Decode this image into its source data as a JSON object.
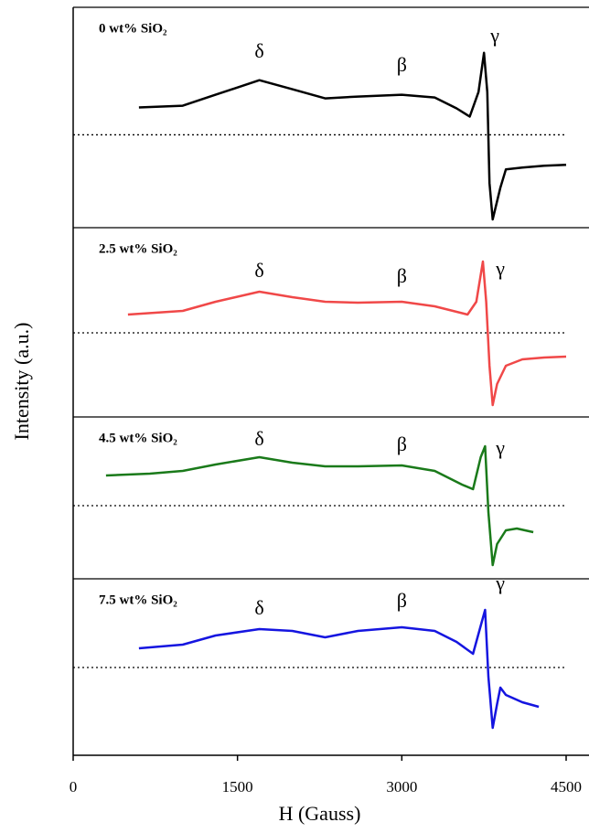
{
  "chart_data": [
    {
      "type": "line",
      "title": "0 wt% SiO₂",
      "color": "#000000",
      "xlim": [
        0,
        4500
      ],
      "ylim": [
        -1.02,
        1.4
      ],
      "baseline": 0,
      "x": [
        600,
        1000,
        1300,
        1700,
        2000,
        2300,
        2600,
        3000,
        3300,
        3500,
        3620,
        3700,
        3750,
        3780,
        3800,
        3830,
        3870,
        3900,
        3950,
        4100,
        4300,
        4500
      ],
      "values": [
        0.3,
        0.32,
        0.44,
        0.6,
        0.5,
        0.4,
        0.42,
        0.44,
        0.41,
        0.29,
        0.2,
        0.47,
        0.9,
        0.47,
        -0.53,
        -0.93,
        -0.73,
        -0.58,
        -0.38,
        -0.36,
        -0.34,
        -0.33
      ],
      "annotations": [
        {
          "text": "δ",
          "x": 1700,
          "y": 0.9
        },
        {
          "text": "β",
          "x": 3000,
          "y": 0.75
        },
        {
          "text": "γ",
          "x": 3850,
          "y": 1.07
        }
      ]
    },
    {
      "type": "line",
      "title": "2.5 wt% SiO₂",
      "color": "#f04848",
      "xlim": [
        0,
        4500
      ],
      "ylim": [
        -0.92,
        1.15
      ],
      "baseline": 0,
      "x": [
        500,
        1000,
        1300,
        1700,
        2000,
        2300,
        2600,
        3000,
        3300,
        3600,
        3680,
        3740,
        3770,
        3800,
        3830,
        3870,
        3950,
        4100,
        4300,
        4500
      ],
      "values": [
        0.2,
        0.24,
        0.34,
        0.45,
        0.39,
        0.34,
        0.33,
        0.34,
        0.29,
        0.2,
        0.34,
        0.78,
        0.34,
        -0.36,
        -0.79,
        -0.56,
        -0.36,
        -0.29,
        -0.27,
        -0.26
      ],
      "annotations": [
        {
          "text": "δ",
          "x": 1700,
          "y": 0.66
        },
        {
          "text": "β",
          "x": 3000,
          "y": 0.6
        },
        {
          "text": "γ",
          "x": 3900,
          "y": 0.68
        }
      ]
    },
    {
      "type": "line",
      "title": "4.5 wt% SiO₂",
      "color": "#1a7a1a",
      "xlim": [
        0,
        4500
      ],
      "ylim": [
        -0.8,
        0.97
      ],
      "baseline": 0,
      "x": [
        300,
        700,
        1000,
        1300,
        1700,
        2000,
        2300,
        2600,
        3000,
        3300,
        3550,
        3650,
        3720,
        3760,
        3790,
        3830,
        3870,
        3950,
        4050,
        4200
      ],
      "values": [
        0.33,
        0.35,
        0.38,
        0.45,
        0.53,
        0.47,
        0.43,
        0.43,
        0.44,
        0.38,
        0.23,
        0.18,
        0.53,
        0.65,
        -0.07,
        -0.65,
        -0.42,
        -0.27,
        -0.25,
        -0.29
      ],
      "annotations": [
        {
          "text": "δ",
          "x": 1700,
          "y": 0.71
        },
        {
          "text": "β",
          "x": 3000,
          "y": 0.65
        },
        {
          "text": "γ",
          "x": 3900,
          "y": 0.61
        }
      ]
    },
    {
      "type": "line",
      "title": "7.5 wt% SiO₂",
      "color": "#1515e0",
      "xlim": [
        0,
        4500
      ],
      "ylim": [
        -0.96,
        0.97
      ],
      "baseline": 0,
      "x": [
        600,
        1000,
        1300,
        1700,
        2000,
        2300,
        2600,
        3000,
        3300,
        3500,
        3650,
        3730,
        3760,
        3790,
        3830,
        3870,
        3900,
        3950,
        4100,
        4250
      ],
      "values": [
        0.21,
        0.25,
        0.35,
        0.42,
        0.4,
        0.33,
        0.4,
        0.44,
        0.4,
        0.28,
        0.15,
        0.5,
        0.63,
        -0.1,
        -0.66,
        -0.4,
        -0.22,
        -0.3,
        -0.38,
        -0.43
      ],
      "annotations": [
        {
          "text": "δ",
          "x": 1700,
          "y": 0.63
        },
        {
          "text": "β",
          "x": 3000,
          "y": 0.71
        },
        {
          "text": "γ",
          "x": 3900,
          "y": 0.9
        }
      ],
      "xticks": [
        0,
        1500,
        3000,
        4500
      ],
      "xlabel": "H (Gauss)",
      "ylabel": "Intensity (a.u.)"
    }
  ]
}
